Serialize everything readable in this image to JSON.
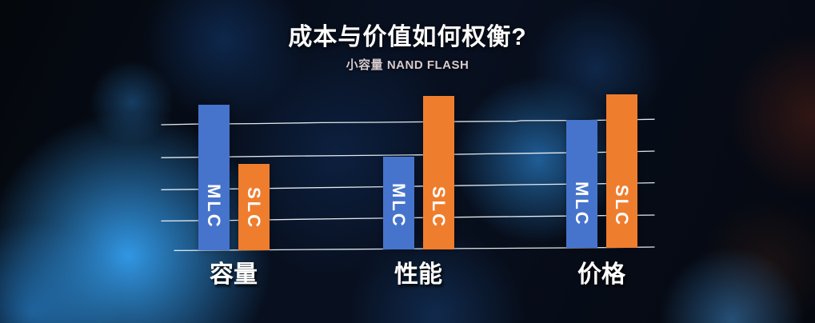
{
  "title": "成本与价值如何权衡?",
  "subtitle": "小容量 NAND FLASH",
  "chart_data": {
    "type": "bar",
    "title": "成本与价值如何权衡?",
    "subtitle": "小容量 NAND FLASH",
    "categories": [
      "容量",
      "性能",
      "价格"
    ],
    "series": [
      {
        "name": "MLC",
        "color": "#4674CC",
        "values": [
          4.55,
          2.9,
          4.0
        ]
      },
      {
        "name": "SLC",
        "color": "#EF7D2E",
        "values": [
          2.7,
          4.8,
          4.8
        ]
      }
    ],
    "ylim": [
      0,
      5
    ],
    "gridline_count": 5,
    "grid_style": "hand-drawn wavy white horizontal lines, no axis tick labels",
    "legend": "series names printed vertically inside bars",
    "background": "dark blue bokeh glow",
    "colors": {
      "title": "#FFFFFF",
      "subtitle": "#D7CBCE",
      "category_label": "#FFFFFF",
      "bar_label": "#FFFFFF",
      "gridline": "#EFF3F8"
    }
  }
}
